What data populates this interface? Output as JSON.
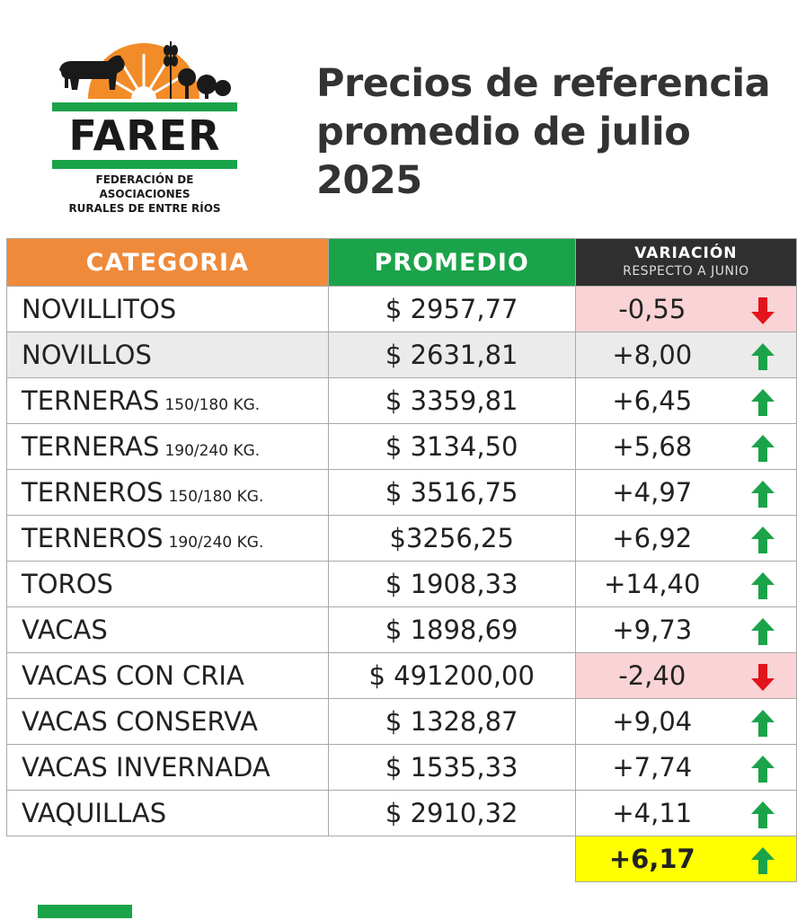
{
  "logo": {
    "word": "FARER",
    "subtitle_line1": "FEDERACIÓN DE ASOCIACIONES",
    "subtitle_line2": "RURALES DE ENTRE RÍOS",
    "colors": {
      "sun": "#f28c28",
      "green": "#1ba34a",
      "dark": "#1a1a1a"
    }
  },
  "title": {
    "line1": "Precios de referencia",
    "line2": "promedio de julio",
    "line3": "2025"
  },
  "table": {
    "headers": {
      "category": "CATEGORIA",
      "average": "PROMEDIO",
      "variation": "VARIACIÓN",
      "variation_sub": "RESPECTO A JUNIO"
    },
    "rows": [
      {
        "category": "NOVILLITOS",
        "unit": "",
        "average": "$ 2957,77",
        "variation": "-0,55",
        "direction": "down"
      },
      {
        "category": "NOVILLOS",
        "unit": "",
        "average": "$ 2631,81",
        "variation": "+8,00",
        "direction": "up"
      },
      {
        "category": "TERNERAS",
        "unit": "150/180 KG.",
        "average": "$ 3359,81",
        "variation": "+6,45",
        "direction": "up"
      },
      {
        "category": "TERNERAS",
        "unit": "190/240 KG.",
        "average": "$ 3134,50",
        "variation": "+5,68",
        "direction": "up"
      },
      {
        "category": "TERNEROS",
        "unit": "150/180 KG.",
        "average": "$ 3516,75",
        "variation": "+4,97",
        "direction": "up"
      },
      {
        "category": "TERNEROS",
        "unit": "190/240 KG.",
        "average": "$3256,25",
        "variation": "+6,92",
        "direction": "up"
      },
      {
        "category": "TOROS",
        "unit": "",
        "average": "$ 1908,33",
        "variation": "+14,40",
        "direction": "up"
      },
      {
        "category": "VACAS",
        "unit": "",
        "average": "$ 1898,69",
        "variation": "+9,73",
        "direction": "up"
      },
      {
        "category": "VACAS CON CRIA",
        "unit": "",
        "average": "$ 491200,00",
        "variation": "-2,40",
        "direction": "down"
      },
      {
        "category": "VACAS CONSERVA",
        "unit": "",
        "average": "$ 1328,87",
        "variation": "+9,04",
        "direction": "up"
      },
      {
        "category": "VACAS INVERNADA",
        "unit": "",
        "average": "$ 1535,33",
        "variation": "+7,74",
        "direction": "up"
      },
      {
        "category": "VAQUILLAS",
        "unit": "",
        "average": "$ 2910,32",
        "variation": "+4,11",
        "direction": "up"
      }
    ],
    "total_variation": "+6,17",
    "total_direction": "up",
    "colors": {
      "header_category": "#ef8a3a",
      "header_average": "#1ba34a",
      "header_variation": "#2f2f2f",
      "negative_bg": "#f9d3d5",
      "total_bg": "#ffff00",
      "arrow_up": "#1ba34a",
      "arrow_down": "#e3141c"
    }
  }
}
